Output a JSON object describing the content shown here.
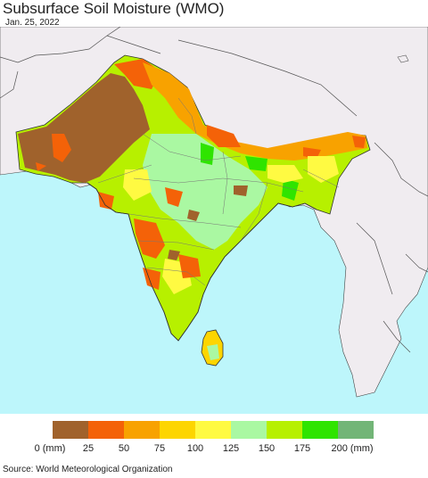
{
  "title": "Subsurface Soil Moisture (WMO)",
  "date": "Jan. 25, 2022",
  "source": "Source: World Meteorological Organization",
  "colors": {
    "ocean": "#bdf6fb",
    "land_outside": "#f0ecf0",
    "border": "#333333"
  },
  "legend": {
    "swatches": [
      "#a0622c",
      "#f46208",
      "#f8a200",
      "#fdd500",
      "#fffa42",
      "#aaf8a2",
      "#b7f000",
      "#2fe400",
      "#72b577"
    ],
    "ticks": [
      "0 (mm)",
      "25",
      "50",
      "75",
      "100",
      "125",
      "150",
      "175",
      "200 (mm)"
    ]
  }
}
